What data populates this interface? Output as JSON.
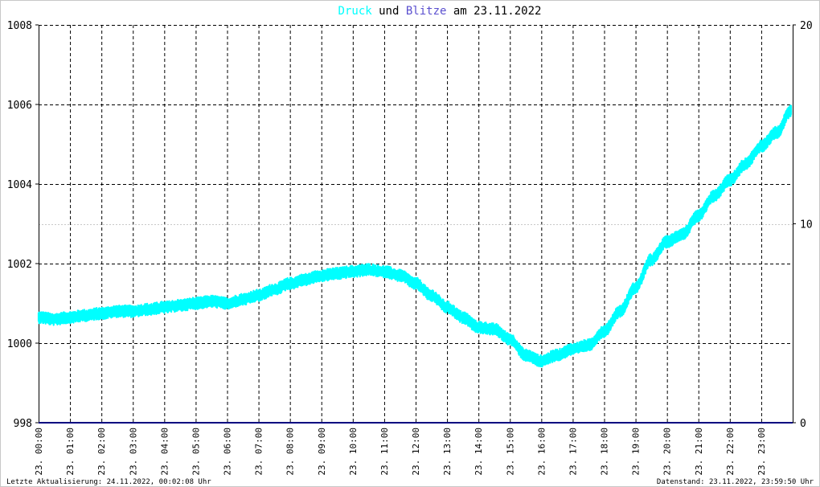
{
  "chart_data": {
    "type": "line",
    "title": {
      "part1": "Druck",
      "part2": " und ",
      "part3": "Blitze",
      "part4": " am 23.11.2022"
    },
    "colors": {
      "druck": "#00ffff",
      "blitze": "#5a4fcf",
      "blitze_line": "#000080",
      "title_text": "#000000",
      "grid": "#000000",
      "axis": "#000000",
      "minor_grid": "#c8c8c8"
    },
    "left_axis": {
      "min": 998,
      "max": 1008,
      "ticks": [
        "998",
        "1000",
        "1002",
        "1004",
        "1006",
        "1008"
      ]
    },
    "right_axis": {
      "min": 0,
      "max": 20,
      "ticks": [
        "0",
        "10",
        "20"
      ]
    },
    "x_labels": [
      "23. 00:00",
      "23. 01:00",
      "23. 02:00",
      "23. 03:00",
      "23. 04:00",
      "23. 05:00",
      "23. 06:00",
      "23. 07:00",
      "23. 08:00",
      "23. 09:00",
      "23. 10:00",
      "23. 11:00",
      "23. 12:00",
      "23. 13:00",
      "23. 14:00",
      "23. 15:00",
      "23. 16:00",
      "23. 17:00",
      "23. 18:00",
      "23. 19:00",
      "23. 20:00",
      "23. 21:00",
      "23. 22:00",
      "23. 23:00"
    ],
    "grid": true,
    "series": [
      {
        "name": "Druck",
        "axis": "left",
        "x_hours": [
          0,
          0.5,
          1,
          1.5,
          2,
          2.5,
          3,
          3.5,
          4,
          4.5,
          5,
          5.5,
          6,
          6.5,
          7,
          7.5,
          8,
          8.5,
          9,
          9.5,
          10,
          10.5,
          11,
          11.5,
          12,
          12.5,
          13,
          13.5,
          14,
          14.5,
          15,
          15.5,
          16,
          16.5,
          17,
          17.5,
          18,
          18.5,
          19,
          19.5,
          20,
          20.5,
          21,
          21.5,
          22,
          22.5,
          23,
          23.5,
          23.95
        ],
        "values": [
          1000.65,
          1000.6,
          1000.65,
          1000.7,
          1000.75,
          1000.8,
          1000.8,
          1000.85,
          1000.9,
          1000.95,
          1001.0,
          1001.05,
          1001.0,
          1001.1,
          1001.2,
          1001.35,
          1001.5,
          1001.6,
          1001.7,
          1001.75,
          1001.8,
          1001.85,
          1001.8,
          1001.7,
          1001.5,
          1001.2,
          1000.9,
          1000.65,
          1000.4,
          1000.35,
          1000.1,
          999.7,
          999.55,
          999.7,
          999.85,
          999.95,
          1000.3,
          1000.8,
          1001.4,
          1002.1,
          1002.55,
          1002.75,
          1003.2,
          1003.7,
          1004.1,
          1004.5,
          1004.95,
          1005.3,
          1005.85
        ]
      },
      {
        "name": "Blitze",
        "axis": "right",
        "x_hours": [
          0,
          23.95
        ],
        "values": [
          0,
          0
        ]
      }
    ]
  },
  "footer": {
    "left": "Letzte Aktualisierung: 24.11.2022, 00:02:08 Uhr",
    "right": "Datenstand: 23.11.2022, 23:59:50 Uhr"
  }
}
